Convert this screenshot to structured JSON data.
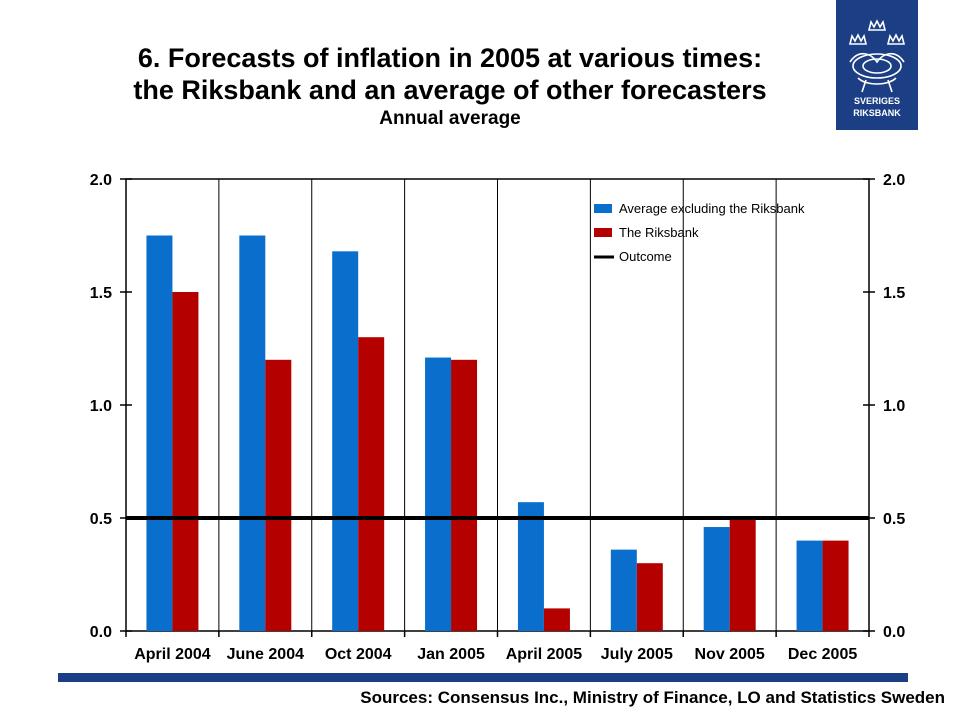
{
  "header": {
    "title_line1": "6. Forecasts of inflation in 2005 at various times:",
    "title_line2": "the Riksbank and an average of other forecasters",
    "subtitle": "Annual average"
  },
  "logo": {
    "line1": "SVERIGES",
    "line2": "RIKSBANK",
    "color": "#1b3e85"
  },
  "footer": {
    "sources": "Sources: Consensus Inc., Ministry of Finance, LO and Statistics Sweden"
  },
  "chart_data": {
    "type": "bar",
    "categories": [
      "April 2004",
      "June 2004",
      "Oct 2004",
      "Jan 2005",
      "April 2005",
      "July 2005",
      "Nov 2005",
      "Dec 2005"
    ],
    "series": [
      {
        "name": "Average excluding the Riksbank",
        "color": "#0a6fcc",
        "values": [
          1.75,
          1.75,
          1.68,
          1.21,
          0.57,
          0.36,
          0.46,
          0.4
        ]
      },
      {
        "name": "The Riksbank",
        "color": "#b50000",
        "values": [
          1.5,
          1.2,
          1.3,
          1.2,
          0.1,
          0.3,
          0.5,
          0.4
        ]
      }
    ],
    "reference_line": {
      "name": "Outcome",
      "value": 0.5,
      "color": "#000000"
    },
    "ylim": [
      0.0,
      2.0
    ],
    "yticks": [
      "0.0",
      "0.5",
      "1.0",
      "1.5",
      "2.0"
    ],
    "dual_y_axis": true,
    "grid": "vertical separators between categories",
    "legend_position": "top-right"
  }
}
